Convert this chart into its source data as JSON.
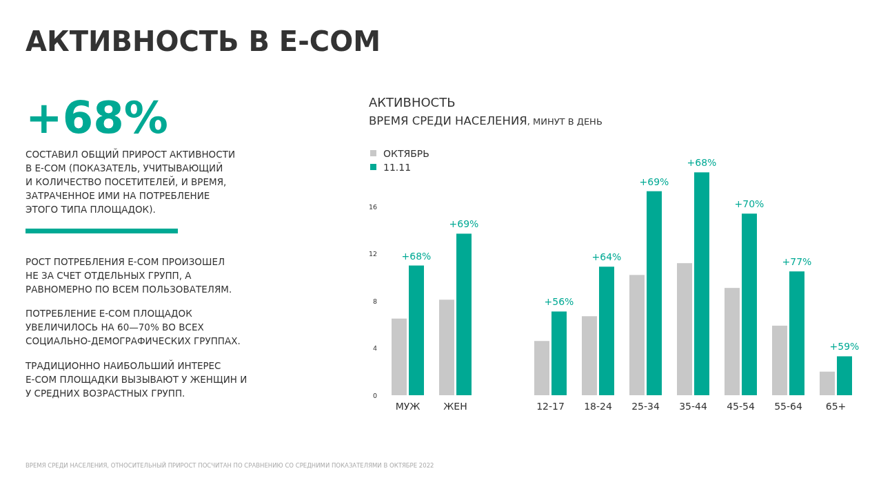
{
  "chart_data": {
    "type": "bar",
    "title": "АКТИВНОСТЬ",
    "subtitle": "ВРЕМЯ СРЕДИ НАСЕЛЕНИЯ, МИНУТ В ДЕНЬ",
    "categories": [
      "МУЖ",
      "ЖЕН",
      null,
      "12-17",
      "18-24",
      "25-34",
      "35-44",
      "45-54",
      "55-64",
      "65+"
    ],
    "series": [
      {
        "name": "ОКТЯБРЬ",
        "color": "#c8c8c8",
        "values": [
          6.5,
          8.1,
          null,
          4.6,
          6.7,
          10.2,
          11.2,
          9.1,
          5.9,
          2.0
        ]
      },
      {
        "name": "11.11",
        "color": "#00a994",
        "values": [
          11.0,
          13.7,
          null,
          7.1,
          10.9,
          17.3,
          18.9,
          15.4,
          10.5,
          3.3
        ]
      }
    ],
    "ylim": [
      0,
      19
    ],
    "yticks": [
      0,
      4,
      8,
      12,
      16
    ],
    "grid": false,
    "legend": "top left",
    "annotations": [
      "АКТИВНОСТЬ В E-COM",
      "+68%",
      "СОСТАВИЛ ОБЩИЙ ПРИРОСТ АКТИВНОСТИ\nВ E-COM (ПОКАЗАТЕЛЬ, УЧИТЫВАЮЩИЙ\nИ КОЛИЧЕСТВО ПОСЕТИТЕЛЕЙ, И ВРЕМЯ,\nЗАТРАЧЕННОЕ ИМИ НА ПОТРЕБЛЕНИЕ\nЭТОГО ТИПА ПЛОЩАДОК).",
      "РОСТ ПОТРЕБЛЕНИЯ E-COM ПРОИЗОШЕЛ\nНЕ ЗА СЧЕТ ОТДЕЛЬНЫХ ГРУПП, А\nРАВНОМЕРНО ПО ВСЕМ ПОЛЬЗОВАТЕЛЯМ.",
      "ПОТРЕБЛЕНИЕ E-COM ПЛОЩАДОК\nУВЕЛИЧИЛОСЬ НА 60—70% ВО ВСЕХ\nСОЦИАЛЬНО-ДЕМОГРАФИЧЕСКИХ ГРУППАХ.",
      "ТРАДИЦИОННО НАИБОЛЬШИЙ ИНТЕРЕС\nE-COM ПЛОЩАДКИ ВЫЗЫВАЮТ У ЖЕНЩИН И\nУ СРЕДНИХ ВОЗРАСТНЫХ ГРУПП.",
      "ВРЕМЯ СРЕДИ НАСЕЛЕНИЯ, ОТНОСИТЕЛЬНЫЙ ПРИРОСТ ПОСЧИТАН ПО СРАВНЕНИЮ СО СРЕДНИМИ ПОКАЗАТЕЛЯМИ В ОКТЯБРЕ 2022",
      {
        "text": "+68%",
        "x": "МУЖ",
        "y": 11.0
      },
      {
        "text": "+69%",
        "x": "ЖЕН",
        "y": 13.7
      },
      {
        "text": "+56%",
        "x": "12-17",
        "y": 7.1
      },
      {
        "text": "+64%",
        "x": "18-24",
        "y": 10.9
      },
      {
        "text": "+69%",
        "x": "25-34",
        "y": 17.3
      },
      {
        "text": "+68%",
        "x": "35-44",
        "y": 18.9
      },
      {
        "text": "+70%",
        "x": "45-54",
        "y": 15.4
      },
      {
        "text": "+77%",
        "x": "55-64",
        "y": 10.5
      },
      {
        "text": "+59%",
        "x": "65+",
        "y": 3.3
      }
    ]
  }
}
